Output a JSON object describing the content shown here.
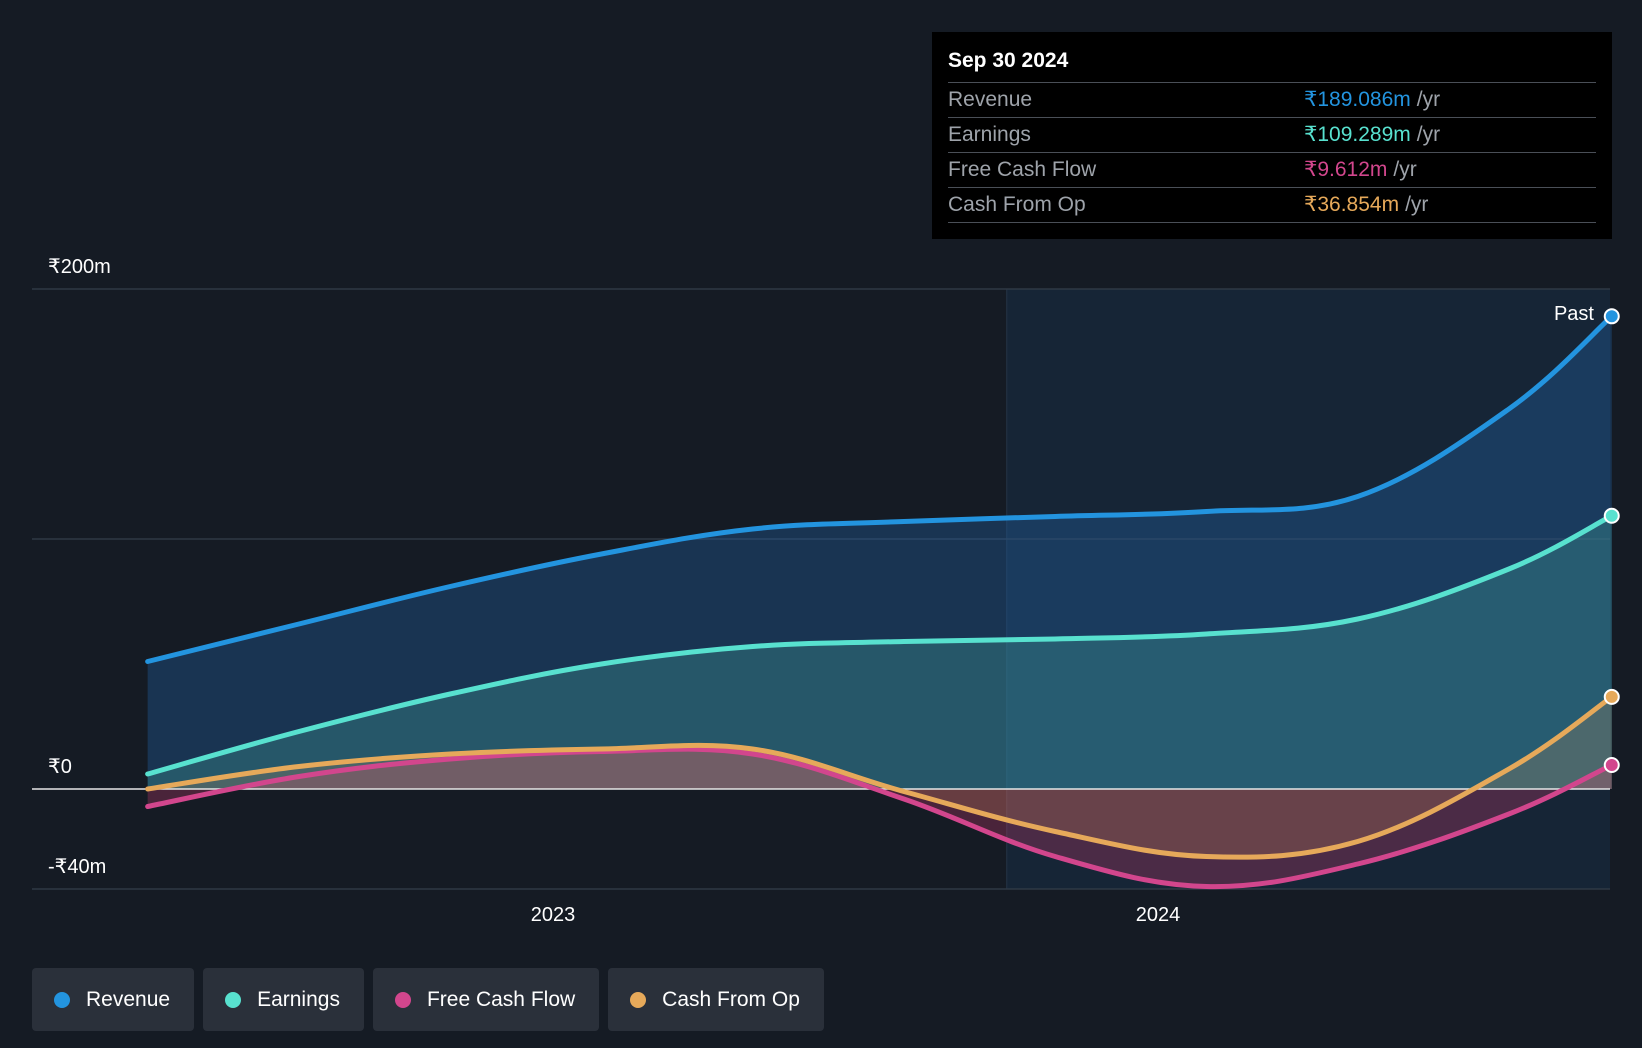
{
  "chart_data": {
    "type": "area",
    "title": "",
    "xlabel": "",
    "ylabel": "",
    "ylim": [
      -40,
      200
    ],
    "y_tick_labels": [
      "₹200m",
      "₹0",
      "-₹40m"
    ],
    "x_tick_labels": [
      "2023",
      "2024"
    ],
    "past_label": "Past",
    "x": [
      2022.33,
      2022.58,
      2022.83,
      2023.08,
      2023.33,
      2023.58,
      2023.83,
      2024.08,
      2024.33,
      2024.58,
      2024.75
    ],
    "series": [
      {
        "name": "Revenue",
        "color": "#2394df",
        "values": [
          51,
          66,
          81,
          94,
          104,
          107,
          109,
          111,
          117,
          152,
          189.086
        ]
      },
      {
        "name": "Earnings",
        "color": "#58e1cf",
        "values": [
          6,
          23,
          38,
          50,
          57,
          59,
          60,
          62,
          68,
          88,
          109.289
        ]
      },
      {
        "name": "Free Cash Flow",
        "color": "#d2468d",
        "values": [
          -7,
          5,
          12,
          15,
          14,
          -4,
          -27,
          -39,
          -30,
          -10,
          9.612
        ]
      },
      {
        "name": "Cash From Op",
        "color": "#e6a95a",
        "values": [
          0,
          9,
          14,
          16,
          16,
          -1,
          -17,
          -27,
          -21,
          8,
          36.854
        ]
      }
    ]
  },
  "tooltip": {
    "date": "Sep 30 2024",
    "rows": [
      {
        "name": "Revenue",
        "value": "₹189.086m",
        "unit": "/yr",
        "color": "#2394df"
      },
      {
        "name": "Earnings",
        "value": "₹109.289m",
        "unit": "/yr",
        "color": "#58e1cf"
      },
      {
        "name": "Free Cash Flow",
        "value": "₹9.612m",
        "unit": "/yr",
        "color": "#d2468d"
      },
      {
        "name": "Cash From Op",
        "value": "₹36.854m",
        "unit": "/yr",
        "color": "#e6a95a"
      }
    ]
  },
  "legend": [
    {
      "label": "Revenue",
      "color": "#2394df"
    },
    {
      "label": "Earnings",
      "color": "#58e1cf"
    },
    {
      "label": "Free Cash Flow",
      "color": "#d2468d"
    },
    {
      "label": "Cash From Op",
      "color": "#e6a95a"
    }
  ]
}
